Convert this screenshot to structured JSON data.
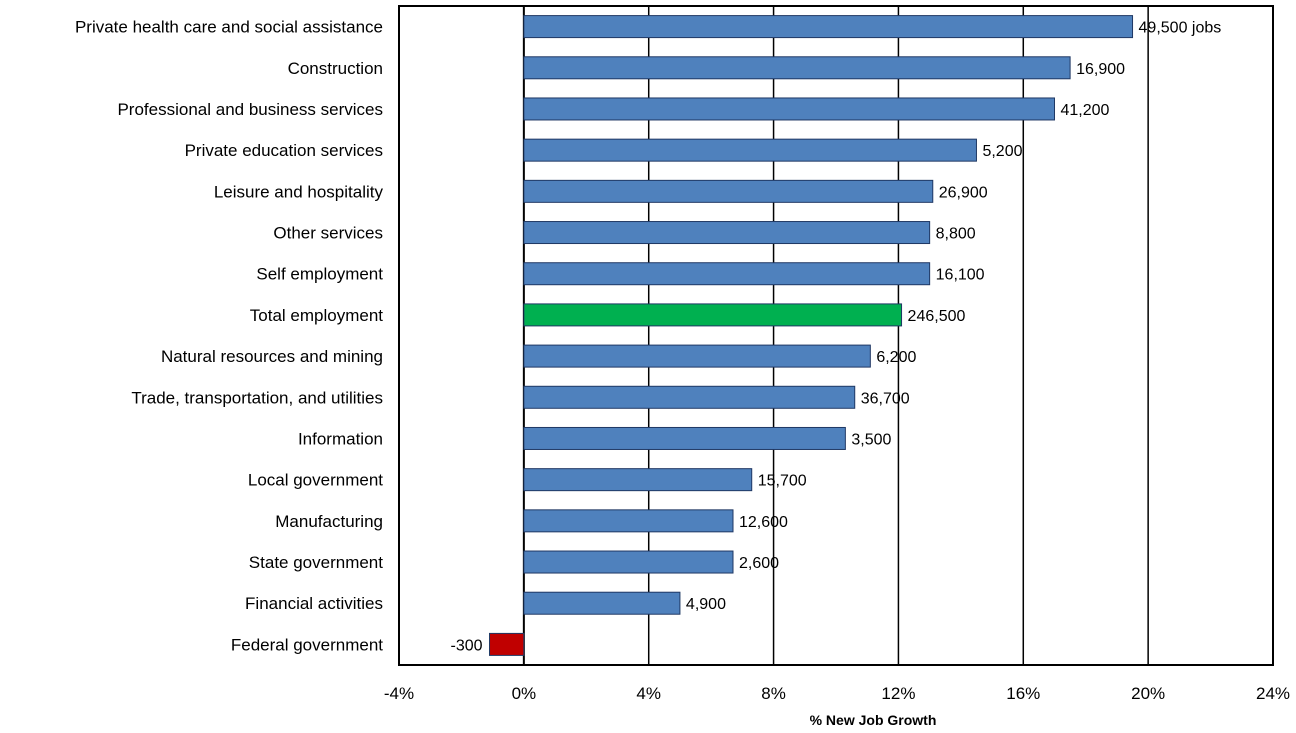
{
  "chart_data": {
    "type": "bar",
    "orientation": "horizontal",
    "categories": [
      "Private health care and social assistance",
      "Construction",
      "Professional and business services",
      "Private education services",
      "Leisure and hospitality",
      "Other services",
      "Self employment",
      "Total employment",
      "Natural resources and mining",
      "Trade, transportation, and utilities",
      "Information",
      "Local government",
      "Manufacturing",
      "State government",
      "Financial activities",
      "Federal government"
    ],
    "values": [
      19.5,
      17.5,
      17.0,
      14.5,
      13.1,
      13.0,
      13.0,
      12.1,
      11.1,
      10.6,
      10.3,
      7.3,
      6.7,
      6.7,
      5.0,
      -1.1
    ],
    "data_labels": [
      "49,500 jobs",
      "16,900",
      "41,200",
      "5,200",
      "26,900",
      "8,800",
      "16,100",
      "246,500",
      "6,200",
      "36,700",
      "3,500",
      "15,700",
      "12,600",
      "2,600",
      "4,900",
      "-300"
    ],
    "bar_colors": [
      "#4f81bd",
      "#4f81bd",
      "#4f81bd",
      "#4f81bd",
      "#4f81bd",
      "#4f81bd",
      "#4f81bd",
      "#00b050",
      "#4f81bd",
      "#4f81bd",
      "#4f81bd",
      "#4f81bd",
      "#4f81bd",
      "#4f81bd",
      "#4f81bd",
      "#c00000"
    ],
    "xlabel": "% New Job Growth",
    "ylabel": "",
    "xlim": [
      -4,
      24
    ],
    "xticks": [
      -4,
      0,
      4,
      8,
      12,
      16,
      20,
      24
    ],
    "xtick_labels": [
      "-4%",
      "0%",
      "4%",
      "8%",
      "12%",
      "16%",
      "20%",
      "24%"
    ],
    "grid": "vertical",
    "legend": "none"
  }
}
